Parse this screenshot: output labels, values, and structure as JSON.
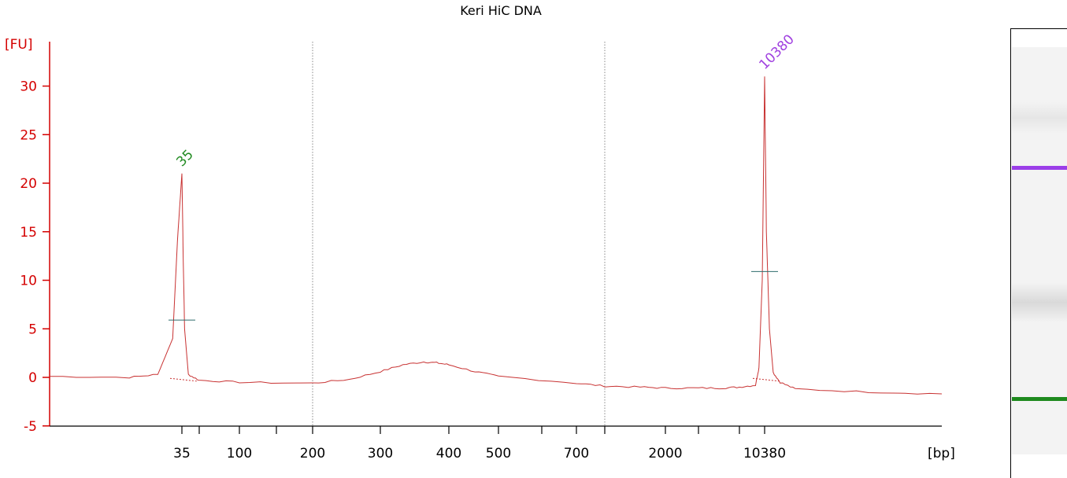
{
  "chart_data": {
    "type": "line",
    "title": "Keri HiC DNA",
    "ylabel": "[FU]",
    "xlabel": "[bp]",
    "ylim": [
      -5,
      33
    ],
    "yticks": [
      -5,
      0,
      5,
      10,
      15,
      20,
      25,
      30
    ],
    "xticks_labeled": [
      "35",
      "100",
      "200",
      "300",
      "400",
      "500",
      "700",
      "2000",
      "10380"
    ],
    "gridlines_x": [
      "200",
      "1000"
    ],
    "x_scale": "sizing ladder (non-linear)",
    "series": [
      {
        "color": "#c83232",
        "x": [
          15,
          25,
          30,
          33,
          34,
          35,
          36,
          37,
          40,
          50,
          100,
          200,
          250,
          300,
          330,
          360,
          380,
          400,
          450,
          500,
          700,
          1000,
          1500,
          2000,
          3000,
          5000,
          7000,
          9000,
          9500,
          10000,
          10380,
          10600,
          11000,
          11500,
          12500,
          15000,
          30000,
          60000
        ],
        "y": [
          0.1,
          0.0,
          0.3,
          4.0,
          14.0,
          21.0,
          12.0,
          5.0,
          0.3,
          -0.3,
          -0.5,
          -0.6,
          -0.2,
          0.6,
          1.3,
          1.6,
          1.5,
          1.3,
          0.6,
          0.1,
          -0.6,
          -0.9,
          -1.0,
          -1.1,
          -1.1,
          -1.1,
          -1.0,
          -0.8,
          1.0,
          10.0,
          31.0,
          15.0,
          5.0,
          0.5,
          -0.5,
          -1.2,
          -1.5,
          -1.7
        ]
      }
    ],
    "peaks": [
      {
        "label": "35",
        "x": "35",
        "y": 21.0,
        "color": "#228b22"
      },
      {
        "label": "10380",
        "x": "10380",
        "y": 31.0,
        "color": "#a040e0"
      }
    ],
    "gel": {
      "bands": [
        {
          "name": "upper-marker",
          "color": "#9b3ee8"
        },
        {
          "name": "lower-marker",
          "color": "#1e8a1e"
        }
      ]
    }
  }
}
